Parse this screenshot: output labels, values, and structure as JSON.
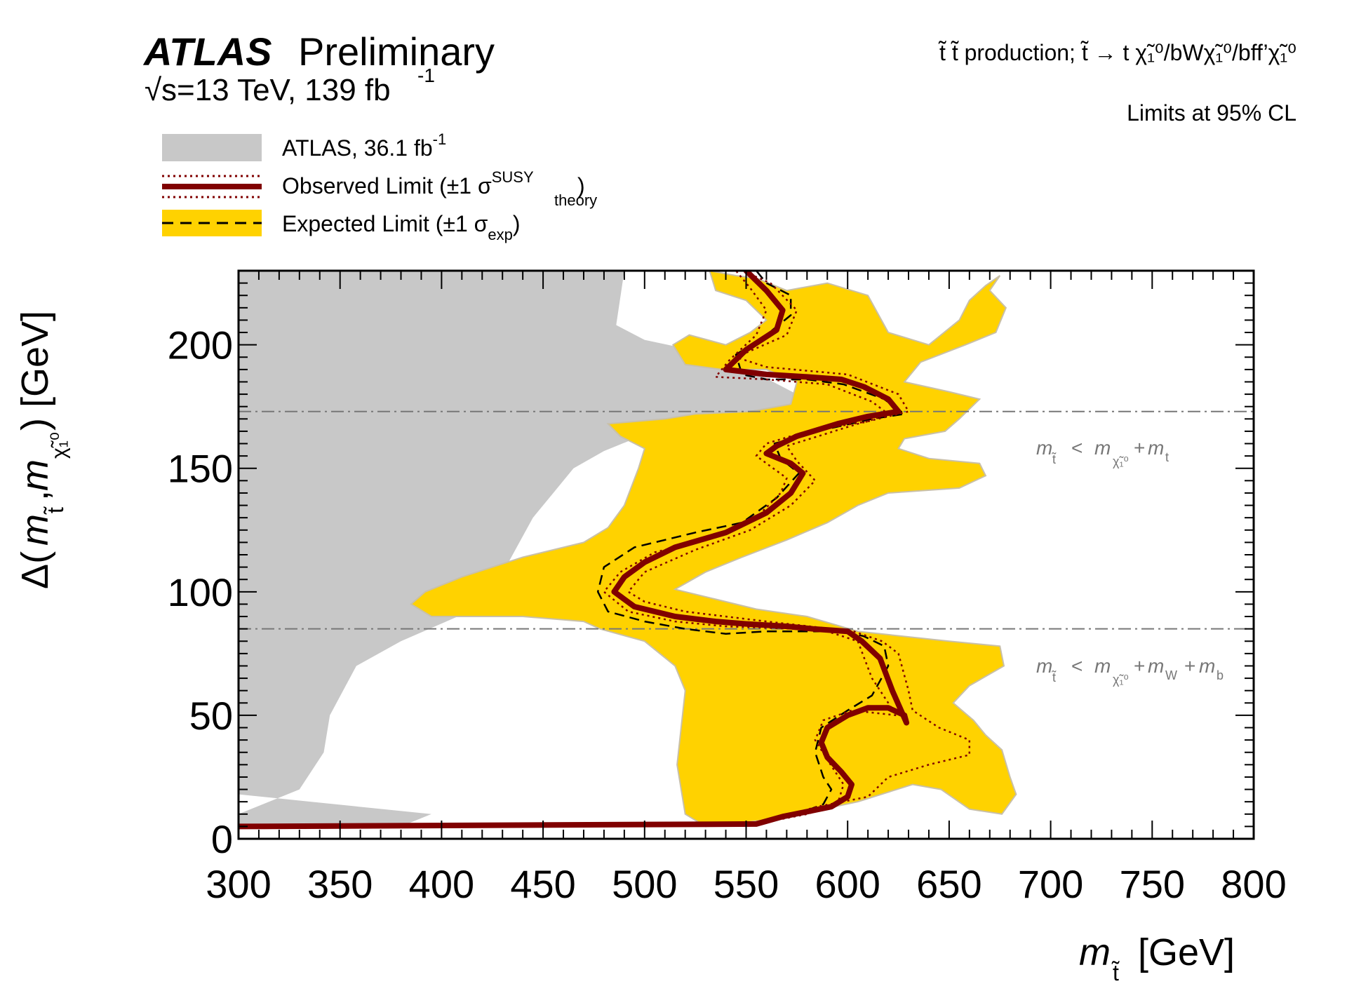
{
  "header": {
    "experiment": "ATLAS",
    "status": "Preliminary",
    "energy_pre": "s",
    "energy_post": "=13 TeV, 139 fb",
    "energy_exp": "-1"
  },
  "process": {
    "line": "t̃ t̃ production; t̃ → t χ̃₁⁰/bWχ̃₁⁰/bff’χ̃₁⁰",
    "cl": "Limits at 95% CL"
  },
  "legend": {
    "entries": [
      {
        "label": "ATLAS, 36.1 fb",
        "sup": "-1",
        "sub": ""
      },
      {
        "label": "Observed Limit (±1 σ",
        "sup": "SUSY",
        "sub": "theory",
        "close": ")"
      },
      {
        "label": "Expected Limit (±1 σ",
        "sup": "",
        "sub": "exp",
        "close": ")"
      }
    ]
  },
  "annotations": {
    "upper": {
      "m": "m",
      "mt_sub": "t̃",
      "lt": "<",
      "m2": "m",
      "chi_sub": "χ̃₁⁰",
      "plus": "+",
      "m3": "m",
      "t_sub": "t"
    },
    "lower": {
      "m": "m",
      "mt_sub": "t̃",
      "lt": "<",
      "m2": "m",
      "chi_sub": "χ̃₁⁰",
      "plus": "+",
      "m3": "m",
      "W_sub": "W",
      "plus2": "+",
      "m4": "m",
      "b_sub": "b"
    }
  },
  "colors": {
    "grey": "#c8c8c8",
    "yellow": "#ffd200",
    "observed": "#800000",
    "expected": "#000000",
    "ref": "#777777",
    "annotation": "#777777"
  },
  "chart_data": {
    "type": "area",
    "xlabel": "m_t̃ [GeV]",
    "ylabel": "Δ(m_t̃, m_χ̃₁⁰) [GeV]",
    "xlim": [
      300,
      800
    ],
    "ylim": [
      0,
      230
    ],
    "x_ticks": [
      300,
      350,
      400,
      450,
      500,
      550,
      600,
      650,
      700,
      750,
      800
    ],
    "y_ticks": [
      0,
      50,
      100,
      150,
      200
    ],
    "reference_lines": [
      {
        "name": "m_t̃ < m_χ̃₁⁰ + m_t",
        "y": 173
      },
      {
        "name": "m_t̃ < m_χ̃₁⁰ + m_W + m_b",
        "y": 85
      }
    ],
    "series": [
      {
        "name": "ATLAS, 36.1 fb-1",
        "kind": "filled",
        "points": [
          [
            300,
            0
          ],
          [
            300,
            230
          ],
          [
            490,
            230
          ],
          [
            486,
            208
          ],
          [
            500,
            202
          ],
          [
            540,
            195
          ],
          [
            575,
            180
          ],
          [
            590,
            172
          ],
          [
            560,
            168
          ],
          [
            520,
            165
          ],
          [
            495,
            162
          ],
          [
            480,
            157
          ],
          [
            465,
            150
          ],
          [
            455,
            140
          ],
          [
            445,
            130
          ],
          [
            435,
            115
          ],
          [
            425,
            100
          ],
          [
            408,
            90
          ],
          [
            380,
            80
          ],
          [
            358,
            70
          ],
          [
            345,
            50
          ],
          [
            342,
            35
          ],
          [
            330,
            20
          ],
          [
            300,
            10
          ],
          [
            300,
            5
          ],
          [
            380,
            5
          ],
          [
            395,
            10
          ],
          [
            300,
            18
          ],
          [
            300,
            0
          ]
        ]
      },
      {
        "name": "Expected Limit (±1 σexp) band",
        "kind": "filled",
        "points": [
          [
            532,
            230
          ],
          [
            545,
            228
          ],
          [
            555,
            227
          ],
          [
            570,
            222
          ],
          [
            590,
            225
          ],
          [
            610,
            220
          ],
          [
            620,
            205
          ],
          [
            640,
            200
          ],
          [
            655,
            210
          ],
          [
            660,
            218
          ],
          [
            668,
            224
          ],
          [
            675,
            228
          ],
          [
            670,
            222
          ],
          [
            678,
            215
          ],
          [
            673,
            205
          ],
          [
            658,
            200
          ],
          [
            636,
            193
          ],
          [
            628,
            185
          ],
          [
            650,
            181
          ],
          [
            665,
            178
          ],
          [
            655,
            170
          ],
          [
            648,
            165
          ],
          [
            628,
            162
          ],
          [
            625,
            158
          ],
          [
            640,
            154
          ],
          [
            665,
            152
          ],
          [
            668,
            147
          ],
          [
            655,
            142
          ],
          [
            620,
            140
          ],
          [
            605,
            135
          ],
          [
            590,
            128
          ],
          [
            570,
            121
          ],
          [
            548,
            114
          ],
          [
            530,
            108
          ],
          [
            515,
            101
          ],
          [
            535,
            97
          ],
          [
            555,
            93
          ],
          [
            580,
            90
          ],
          [
            605,
            84
          ],
          [
            650,
            80
          ],
          [
            675,
            78
          ],
          [
            677,
            70
          ],
          [
            660,
            62
          ],
          [
            652,
            55
          ],
          [
            662,
            48
          ],
          [
            668,
            42
          ],
          [
            676,
            36
          ],
          [
            680,
            25
          ],
          [
            683,
            18
          ],
          [
            676,
            10
          ],
          [
            660,
            12
          ],
          [
            646,
            20
          ],
          [
            632,
            22
          ],
          [
            605,
            15
          ],
          [
            565,
            8
          ],
          [
            530,
            5
          ],
          [
            520,
            10
          ],
          [
            516,
            30
          ],
          [
            520,
            60
          ],
          [
            515,
            70
          ],
          [
            500,
            80
          ],
          [
            478,
            85
          ],
          [
            470,
            88
          ],
          [
            440,
            90
          ],
          [
            395,
            90
          ],
          [
            385,
            95
          ],
          [
            392,
            100
          ],
          [
            410,
            106
          ],
          [
            440,
            114
          ],
          [
            470,
            120
          ],
          [
            482,
            126
          ],
          [
            490,
            135
          ],
          [
            497,
            150
          ],
          [
            500,
            158
          ],
          [
            488,
            163
          ],
          [
            482,
            168
          ],
          [
            510,
            170
          ],
          [
            525,
            172
          ],
          [
            552,
            173
          ],
          [
            572,
            176
          ],
          [
            575,
            185
          ],
          [
            560,
            190
          ],
          [
            538,
            190
          ],
          [
            520,
            192
          ],
          [
            514,
            200
          ],
          [
            522,
            204
          ],
          [
            540,
            200
          ],
          [
            552,
            205
          ],
          [
            560,
            210
          ],
          [
            550,
            218
          ],
          [
            535,
            222
          ],
          [
            532,
            230
          ]
        ]
      },
      {
        "name": "Observed Limit",
        "kind": "line",
        "points": [
          [
            300,
            5
          ],
          [
            555,
            6
          ],
          [
            568,
            9
          ],
          [
            580,
            11
          ],
          [
            592,
            13
          ],
          [
            600,
            17
          ],
          [
            602,
            22
          ],
          [
            597,
            27
          ],
          [
            590,
            33
          ],
          [
            587,
            39
          ],
          [
            590,
            45
          ],
          [
            600,
            50
          ],
          [
            610,
            53
          ],
          [
            620,
            53
          ],
          [
            628,
            50
          ],
          [
            629,
            47
          ],
          [
            622,
            60
          ],
          [
            616,
            73
          ],
          [
            607,
            80
          ],
          [
            600,
            84
          ],
          [
            583,
            85
          ],
          [
            570,
            86
          ],
          [
            550,
            87
          ],
          [
            535,
            88
          ],
          [
            515,
            90
          ],
          [
            495,
            94
          ],
          [
            485,
            100
          ],
          [
            490,
            106
          ],
          [
            500,
            112
          ],
          [
            515,
            118
          ],
          [
            540,
            124
          ],
          [
            560,
            132
          ],
          [
            572,
            140
          ],
          [
            578,
            148
          ],
          [
            572,
            152
          ],
          [
            560,
            156
          ],
          [
            565,
            159
          ],
          [
            575,
            163
          ],
          [
            595,
            168
          ],
          [
            610,
            171
          ],
          [
            625,
            173
          ],
          [
            620,
            178
          ],
          [
            608,
            183
          ],
          [
            597,
            186
          ],
          [
            580,
            187
          ],
          [
            560,
            188
          ],
          [
            540,
            190
          ],
          [
            550,
            198
          ],
          [
            565,
            206
          ],
          [
            568,
            214
          ],
          [
            560,
            222
          ],
          [
            550,
            230
          ]
        ]
      },
      {
        "name": "Observed Limit (+1 σtheory)",
        "kind": "line",
        "points": [
          [
            300,
            5
          ],
          [
            555,
            6
          ],
          [
            585,
            13
          ],
          [
            610,
            17
          ],
          [
            620,
            25
          ],
          [
            640,
            30
          ],
          [
            660,
            34
          ],
          [
            660,
            40
          ],
          [
            645,
            45
          ],
          [
            632,
            52
          ],
          [
            630,
            60
          ],
          [
            625,
            75
          ],
          [
            617,
            80
          ],
          [
            603,
            84
          ],
          [
            560,
            88
          ],
          [
            520,
            92
          ],
          [
            500,
            96
          ],
          [
            492,
            100
          ],
          [
            500,
            108
          ],
          [
            525,
            117
          ],
          [
            552,
            125
          ],
          [
            572,
            135
          ],
          [
            584,
            145
          ],
          [
            575,
            153
          ],
          [
            570,
            159
          ],
          [
            605,
            168
          ],
          [
            630,
            173
          ],
          [
            625,
            180
          ],
          [
            600,
            188
          ],
          [
            560,
            191
          ],
          [
            545,
            195
          ],
          [
            570,
            204
          ],
          [
            575,
            214
          ],
          [
            562,
            225
          ],
          [
            548,
            230
          ]
        ]
      },
      {
        "name": "Observed Limit (-1 σtheory)",
        "kind": "line",
        "points": [
          [
            300,
            5
          ],
          [
            555,
            6
          ],
          [
            580,
            10
          ],
          [
            595,
            14
          ],
          [
            598,
            22
          ],
          [
            590,
            32
          ],
          [
            584,
            40
          ],
          [
            588,
            48
          ],
          [
            602,
            52
          ],
          [
            624,
            50
          ],
          [
            612,
            65
          ],
          [
            605,
            80
          ],
          [
            590,
            84
          ],
          [
            575,
            85
          ],
          [
            540,
            86
          ],
          [
            515,
            88
          ],
          [
            492,
            92
          ],
          [
            480,
            100
          ],
          [
            488,
            108
          ],
          [
            505,
            116
          ],
          [
            535,
            122
          ],
          [
            555,
            130
          ],
          [
            567,
            140
          ],
          [
            570,
            146
          ],
          [
            555,
            155
          ],
          [
            560,
            160
          ],
          [
            580,
            165
          ],
          [
            610,
            169
          ],
          [
            620,
            172
          ],
          [
            612,
            177
          ],
          [
            590,
            184
          ],
          [
            560,
            186
          ],
          [
            535,
            187
          ],
          [
            542,
            194
          ],
          [
            555,
            204
          ],
          [
            560,
            214
          ],
          [
            552,
            223
          ],
          [
            545,
            230
          ]
        ]
      },
      {
        "name": "Expected Limit",
        "kind": "line",
        "points": [
          [
            300,
            5
          ],
          [
            555,
            6
          ],
          [
            575,
            10
          ],
          [
            588,
            14
          ],
          [
            592,
            20
          ],
          [
            588,
            25
          ],
          [
            584,
            35
          ],
          [
            587,
            45
          ],
          [
            600,
            52
          ],
          [
            612,
            58
          ],
          [
            620,
            70
          ],
          [
            618,
            78
          ],
          [
            608,
            82
          ],
          [
            598,
            84
          ],
          [
            560,
            84
          ],
          [
            540,
            83
          ],
          [
            520,
            85
          ],
          [
            500,
            88
          ],
          [
            482,
            92
          ],
          [
            477,
            100
          ],
          [
            480,
            110
          ],
          [
            495,
            118
          ],
          [
            525,
            124
          ],
          [
            548,
            128
          ],
          [
            565,
            138
          ],
          [
            576,
            148
          ],
          [
            567,
            154
          ],
          [
            564,
            160
          ],
          [
            585,
            165
          ],
          [
            612,
            170
          ],
          [
            628,
            172
          ],
          [
            618,
            178
          ],
          [
            598,
            184
          ],
          [
            580,
            186
          ],
          [
            560,
            186
          ],
          [
            548,
            188
          ],
          [
            545,
            196
          ],
          [
            560,
            204
          ],
          [
            572,
            212
          ],
          [
            572,
            220
          ],
          [
            560,
            225
          ],
          [
            555,
            230
          ]
        ]
      }
    ]
  }
}
